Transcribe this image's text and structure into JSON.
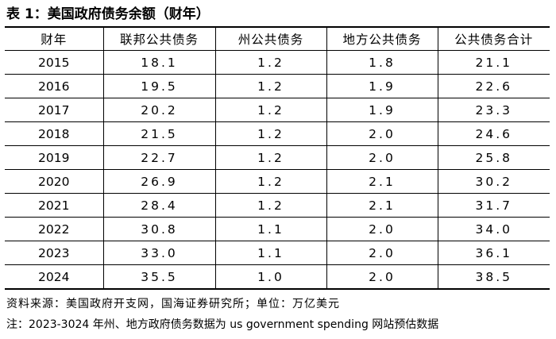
{
  "title": "表 1：美国政府债务余额（财年）",
  "table": {
    "headers": [
      "财年",
      "联邦公共债务",
      "州公共债务",
      "地方公共债务",
      "公共债务合计"
    ],
    "rows": [
      [
        "2015",
        "18.1",
        "1.2",
        "1.8",
        "21.1"
      ],
      [
        "2016",
        "19.5",
        "1.2",
        "1.9",
        "22.6"
      ],
      [
        "2017",
        "20.2",
        "1.2",
        "1.9",
        "23.3"
      ],
      [
        "2018",
        "21.5",
        "1.2",
        "2.0",
        "24.6"
      ],
      [
        "2019",
        "22.7",
        "1.2",
        "2.0",
        "25.8"
      ],
      [
        "2020",
        "26.9",
        "1.2",
        "2.1",
        "30.2"
      ],
      [
        "2021",
        "28.4",
        "1.2",
        "2.1",
        "31.7"
      ],
      [
        "2022",
        "30.8",
        "1.1",
        "2.0",
        "34.0"
      ],
      [
        "2023",
        "33.0",
        "1.1",
        "2.0",
        "36.1"
      ],
      [
        "2024",
        "35.5",
        "1.0",
        "2.0",
        "38.5"
      ]
    ]
  },
  "source_note": "资料来源：美国政府开支网，国海证券研究所；单位：万亿美元",
  "remark_note": "注：2023-3024 年州、地方政府债务数据为 us government spending 网站预估数据"
}
